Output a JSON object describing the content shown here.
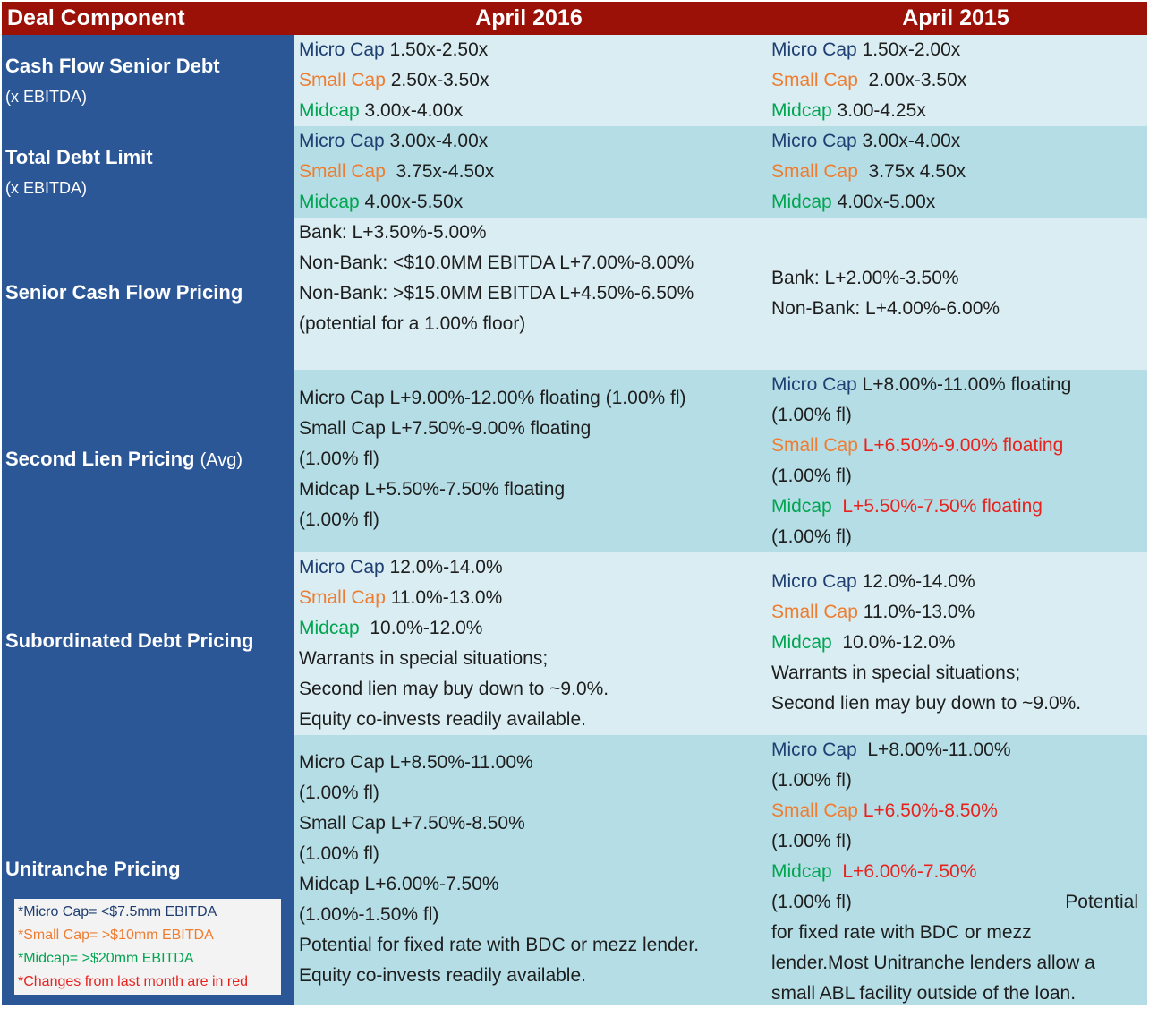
{
  "header": {
    "col0": "Deal Component",
    "col1": "April 2016",
    "col2": "April 2015"
  },
  "tiers": {
    "micro": "Micro Cap",
    "small": "Small Cap",
    "mid": "Midcap"
  },
  "rows": {
    "cash_flow_senior_debt": {
      "label": "Cash Flow Senior Debt",
      "sublabel": "(x EBITDA)",
      "apr2016": {
        "micro": "1.50x-2.50x",
        "small": "2.50x-3.50x",
        "mid": "3.00x-4.00x"
      },
      "apr2015": {
        "micro": "1.50x-2.00x",
        "small": "2.00x-3.50x",
        "mid": "3.00-4.25x"
      }
    },
    "total_debt_limit": {
      "label": "Total Debt Limit",
      "sublabel": "(x EBITDA)",
      "apr2016": {
        "micro": "3.00x-4.00x",
        "small": "3.75x-4.50x",
        "mid": "4.00x-5.50x"
      },
      "apr2015": {
        "micro": "3.00x-4.00x",
        "small": "3.75x 4.50x",
        "mid": "4.00x-5.00x"
      }
    },
    "senior_cash_flow_pricing": {
      "label": "Senior Cash Flow Pricing",
      "apr2016": [
        "Bank: L+3.50%-5.00%",
        "Non-Bank: <$10.0MM EBITDA L+7.00%-8.00%",
        "Non-Bank: >$15.0MM EBITDA L+4.50%-6.50%",
        "(potential for a 1.00% floor)"
      ],
      "apr2015": [
        "Bank: L+2.00%-3.50%",
        "Non-Bank: L+4.00%-6.00%"
      ]
    },
    "second_lien_pricing": {
      "label": "Second Lien Pricing",
      "label_suffix": "(Avg)",
      "apr2016": {
        "micro": "L+9.00%-12.00% floating (1.00% fl)",
        "small": "L+7.50%-9.00% floating",
        "small_note": "(1.00% fl)",
        "mid": "L+5.50%-7.50% floating",
        "mid_note": "(1.00% fl)"
      },
      "apr2015": {
        "micro": "L+8.00%-11.00% floating",
        "micro_note": "(1.00% fl)",
        "small": "L+6.50%-9.00% floating",
        "small_note": "(1.00% fl)",
        "mid": "L+5.50%-7.50% floating",
        "mid_note": "(1.00% fl)"
      }
    },
    "subordinated_debt_pricing": {
      "label": "Subordinated Debt Pricing",
      "apr2016": {
        "micro": "12.0%-14.0%",
        "small": "11.0%-13.0%",
        "mid": "10.0%-12.0%",
        "notes": [
          "Warrants in special situations;",
          "Second lien may buy down to ~9.0%.",
          "Equity co-invests readily available."
        ]
      },
      "apr2015": {
        "micro": "12.0%-14.0%",
        "small": "11.0%-13.0%",
        "mid": "10.0%-12.0%",
        "notes": [
          "Warrants in special situations;",
          "Second lien may buy down to ~9.0%."
        ]
      }
    },
    "unitranche_pricing": {
      "label": "Unitranche Pricing",
      "apr2016": {
        "micro": "L+8.50%-11.00%",
        "micro_note": "(1.00% fl)",
        "small": "L+7.50%-8.50%",
        "small_note": "(1.00% fl)",
        "mid": "L+6.00%-7.50%",
        "mid_note": "(1.00%-1.50% fl)",
        "notes": [
          "Potential for fixed rate with BDC or mezz lender.",
          "Equity co-invests readily available."
        ]
      },
      "apr2015": {
        "micro": "L+8.00%-11.00%",
        "micro_note": "(1.00% fl)",
        "small": "L+6.50%-8.50%",
        "small_note": "(1.00% fl)",
        "mid": "L+6.00%-7.50%",
        "mid_note": "(1.00% fl)",
        "note_inline": "Potential",
        "notes": [
          "for fixed rate with BDC or mezz",
          "lender.Most Unitranche lenders allow a",
          "small ABL facility outside of the loan."
        ]
      }
    }
  },
  "legend": [
    "*Micro Cap= <$7.5mm EBITDA",
    "*Small Cap= >$10mm EBITDA",
    "*Midcap= >$20mm EBITDA",
    "*Changes from last month are in red"
  ],
  "colors": {
    "header_bg": "#9b1108",
    "left_col_bg": "#2b5797",
    "row_light": "#d9edf2",
    "row_dark": "#b5dde5",
    "micro": "#1f3f73",
    "small": "#ee7d31",
    "mid": "#00a550",
    "changed": "#e8231e"
  }
}
